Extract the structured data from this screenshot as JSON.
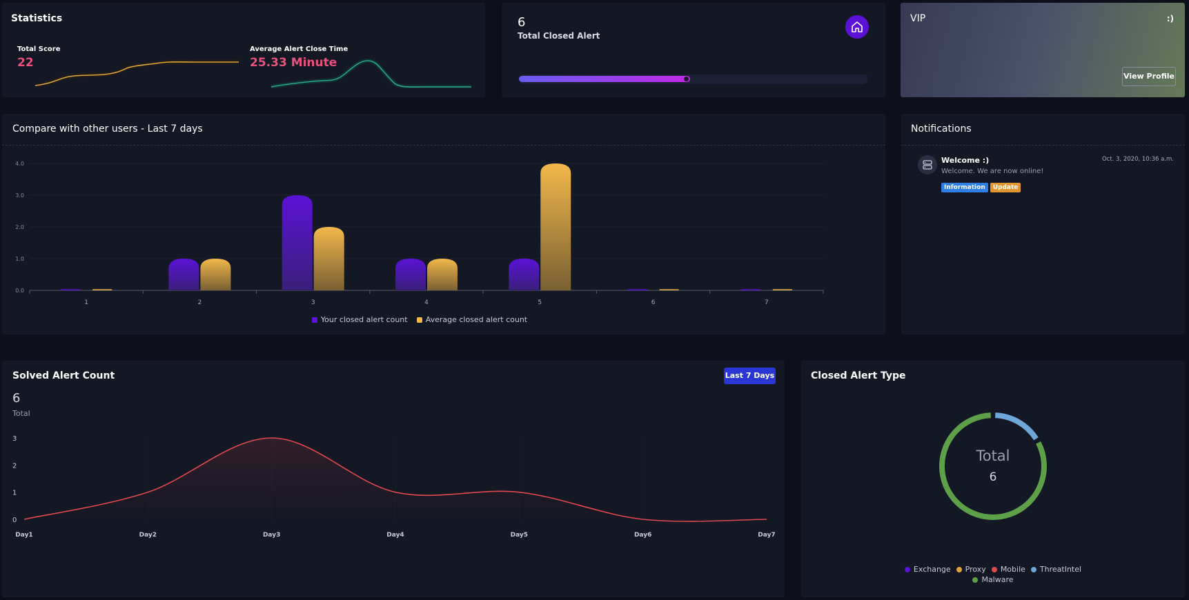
{
  "statistics": {
    "title": "Statistics",
    "total_score_label": "Total Score",
    "total_score_value": "22",
    "avg_close_label": "Average Alert Close Time",
    "avg_close_value": "25.33 Minute"
  },
  "closed_alert": {
    "count": "6",
    "label": "Total Closed Alert",
    "icon": "home-icon",
    "progress": 0.49
  },
  "vip": {
    "title": "VIP",
    "smiley": ":)",
    "button": "View Profile"
  },
  "compare": {
    "title": "Compare with other users - Last 7 days",
    "legend": [
      "Your closed alert count",
      "Average closed alert count"
    ]
  },
  "notifications": {
    "title": "Notifications",
    "items": [
      {
        "icon": "server-icon",
        "title": "Welcome :)",
        "text": "Welcome. We are now online!",
        "time": "Oct. 3, 2020, 10:36 a.m.",
        "badges": [
          "Information",
          "Update"
        ]
      }
    ]
  },
  "solved": {
    "title": "Solved Alert Count",
    "filter": "Last 7 Days",
    "total_value": "6",
    "total_label": "Total"
  },
  "alert_type": {
    "title": "Closed Alert Type",
    "center_label": "Total",
    "center_value": "6"
  },
  "colors": {
    "purple": "#5b12d6",
    "orange": "#f2b84b",
    "red_line": "#e0494f",
    "green": "#5ea04a",
    "blue": "#6fa6d9",
    "teal": "#2aa58b"
  },
  "chart_data": [
    {
      "type": "bar",
      "categories": [
        "1",
        "2",
        "3",
        "4",
        "5",
        "6",
        "7"
      ],
      "series": [
        {
          "name": "Your closed alert count",
          "values": [
            0,
            1,
            3,
            1,
            1,
            0,
            0
          ]
        },
        {
          "name": "Average closed alert count",
          "values": [
            0,
            1,
            2,
            1,
            4,
            0,
            0
          ]
        }
      ],
      "ylim": [
        0,
        4
      ],
      "yticks": [
        "0.0",
        "1.0",
        "2.0",
        "3.0",
        "4.0"
      ],
      "legend": "bottom"
    },
    {
      "type": "area",
      "categories": [
        "Day1",
        "Day2",
        "Day3",
        "Day4",
        "Day5",
        "Day6",
        "Day7"
      ],
      "values": [
        0,
        1,
        3,
        1,
        1,
        0,
        0
      ],
      "ylim": [
        0,
        3
      ],
      "yticks": [
        "0",
        "1",
        "2",
        "3"
      ]
    },
    {
      "type": "pie",
      "labels": [
        "Exchange",
        "Proxy",
        "Mobile",
        "ThreatIntel",
        "Malware"
      ],
      "values": [
        0,
        0,
        0,
        1,
        5
      ],
      "colors": [
        "#5b12d6",
        "#e0a53e",
        "#e04a4a",
        "#6fa6d9",
        "#5ea04a"
      ],
      "legend": "bottom"
    }
  ]
}
